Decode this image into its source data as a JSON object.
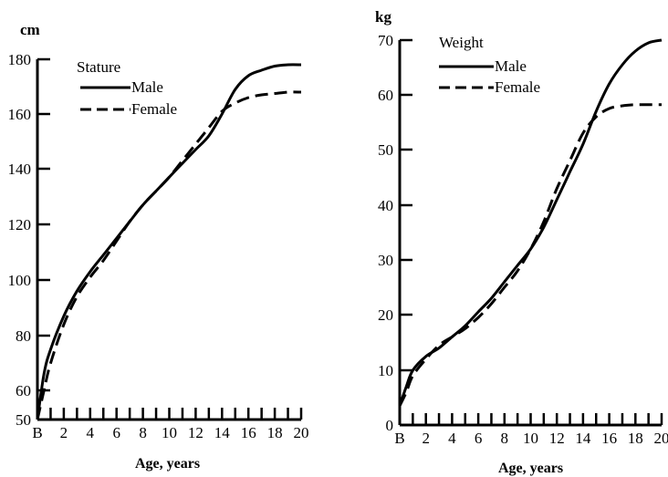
{
  "chart_data": [
    {
      "type": "line",
      "title": "Stature",
      "ylabel": "cm",
      "xlabel": "Age, years",
      "xticks": [
        "B",
        "2",
        "4",
        "6",
        "8",
        "10",
        "12",
        "14",
        "16",
        "18",
        "20"
      ],
      "yticks": [
        "50",
        "60",
        "80",
        "100",
        "120",
        "140",
        "160",
        "180"
      ],
      "xlim": [
        0,
        20
      ],
      "ylim": [
        50,
        180
      ],
      "grid": false,
      "legend": "top-left",
      "series": [
        {
          "name": "Male",
          "style": "solid",
          "x": [
            0,
            0.5,
            1,
            2,
            3,
            4,
            5,
            6,
            7,
            8,
            9,
            10,
            11,
            12,
            13,
            14,
            15,
            16,
            17,
            18,
            19,
            20
          ],
          "y": [
            50,
            66,
            75,
            87,
            96,
            103,
            109,
            115,
            121,
            127,
            132,
            137,
            142,
            147,
            152,
            160,
            169,
            174,
            176,
            177.5,
            178,
            178
          ]
        },
        {
          "name": "Female",
          "style": "dashed",
          "x": [
            0,
            0.5,
            1,
            2,
            3,
            4,
            5,
            6,
            7,
            8,
            9,
            10,
            11,
            12,
            13,
            14,
            15,
            16,
            17,
            18,
            19,
            20
          ],
          "y": [
            50,
            60,
            70,
            84,
            94,
            101,
            107,
            114,
            121,
            127,
            132,
            137,
            143,
            149,
            155,
            161,
            164,
            166,
            167,
            167.5,
            168,
            168
          ]
        }
      ]
    },
    {
      "type": "line",
      "title": "Weight",
      "ylabel": "kg",
      "xlabel": "Age, years",
      "xticks": [
        "B",
        "2",
        "4",
        "6",
        "8",
        "10",
        "12",
        "14",
        "16",
        "18",
        "20"
      ],
      "yticks": [
        "0",
        "10",
        "20",
        "30",
        "40",
        "50",
        "60",
        "70"
      ],
      "xlim": [
        0,
        20
      ],
      "ylim": [
        0,
        70
      ],
      "grid": false,
      "legend": "top-left",
      "series": [
        {
          "name": "Male",
          "style": "solid",
          "x": [
            0,
            0.5,
            1,
            2,
            3,
            4,
            5,
            6,
            7,
            8,
            9,
            10,
            11,
            12,
            13,
            14,
            15,
            16,
            17,
            18,
            19,
            20
          ],
          "y": [
            3.5,
            7,
            10,
            12.5,
            14,
            16,
            18,
            20.5,
            23,
            26,
            29,
            32,
            36,
            41,
            46,
            51,
            57,
            62,
            65.5,
            68,
            69.5,
            70
          ]
        },
        {
          "name": "Female",
          "style": "dashed",
          "x": [
            0,
            0.5,
            1,
            2,
            3,
            4,
            5,
            6,
            7,
            8,
            9,
            10,
            11,
            12,
            13,
            14,
            15,
            16,
            17,
            18,
            19,
            20
          ],
          "y": [
            3.5,
            6,
            9,
            12,
            14.5,
            16,
            17.5,
            19.5,
            22,
            25,
            28,
            32,
            37,
            43,
            48,
            53,
            56,
            57.5,
            58,
            58.2,
            58.2,
            58.2
          ]
        }
      ]
    }
  ]
}
